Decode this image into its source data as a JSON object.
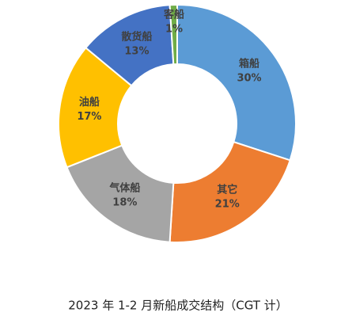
{
  "chart_data": {
    "type": "pie",
    "donut": true,
    "title": "2023 年 1-2 月新船成交结构（CGT 计）",
    "categories": [
      "箱船",
      "其它",
      "气体船",
      "油船",
      "散货船",
      "客船"
    ],
    "values": [
      30,
      21,
      18,
      17,
      13,
      1
    ],
    "value_labels": [
      "30%",
      "21%",
      "18%",
      "17%",
      "13%",
      "1%"
    ],
    "colors": [
      "#5b9bd5",
      "#ed7d31",
      "#a5a5a5",
      "#ffc000",
      "#4472c4",
      "#70ad47"
    ]
  }
}
